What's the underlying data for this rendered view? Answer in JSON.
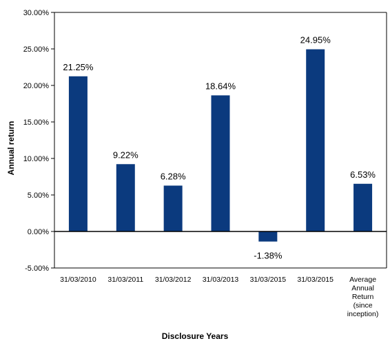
{
  "chart_data": {
    "type": "bar",
    "categories": [
      [
        "31/03/2010"
      ],
      [
        "31/03/2011"
      ],
      [
        "31/03/2012"
      ],
      [
        "31/03/2013"
      ],
      [
        "31/03/2015"
      ],
      [
        "31/03/2015"
      ],
      [
        "Average",
        "Annual",
        "Return",
        "(since",
        "inception)"
      ]
    ],
    "values": [
      21.25,
      9.22,
      6.28,
      18.64,
      -1.38,
      24.95,
      6.53
    ],
    "data_labels": [
      "21.25%",
      "9.22%",
      "6.28%",
      "18.64%",
      "-1.38%",
      "24.95%",
      "6.53%"
    ],
    "y_ticks": [
      "-5.00%",
      "0.00%",
      "5.00%",
      "10.00%",
      "15.00%",
      "20.00%",
      "25.00%",
      "30.00%"
    ],
    "ylim": [
      -5,
      30
    ],
    "xlabel": "Disclosure Years",
    "ylabel": "Annual return",
    "title": "",
    "grid": false,
    "legend": "none",
    "bar_color": "#0b3a7e"
  }
}
